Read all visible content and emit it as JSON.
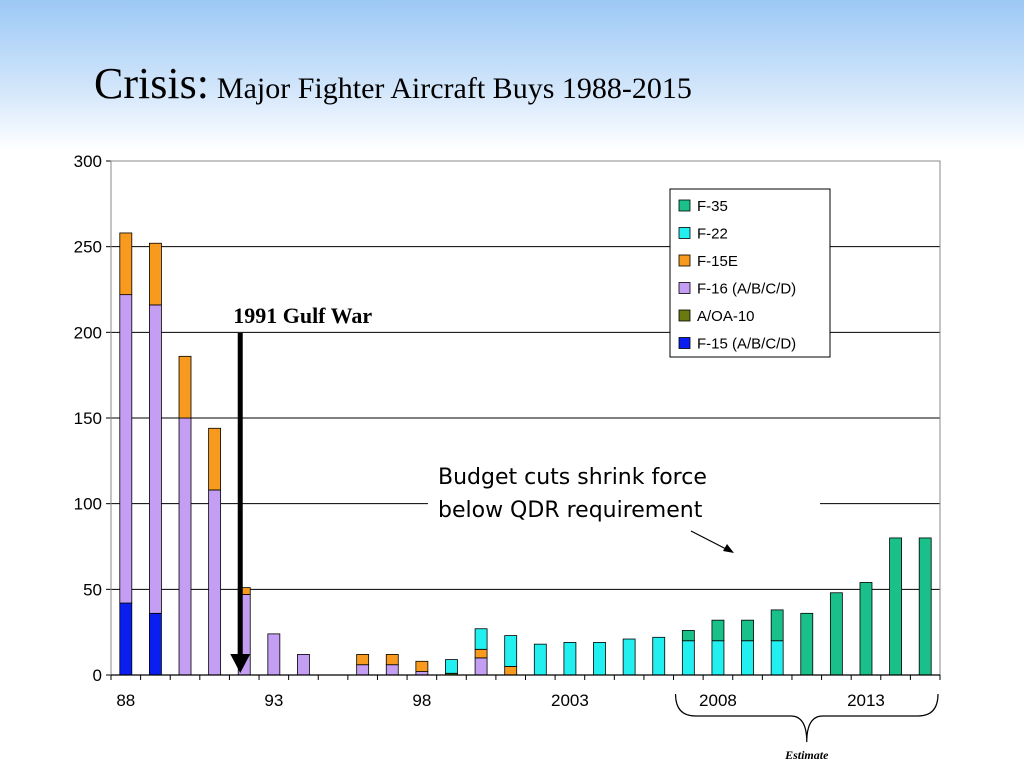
{
  "slide": {
    "title_main": "Crisis:",
    "title_sub": "Major Fighter Aircraft Buys 1988-2015"
  },
  "chart_data": {
    "type": "bar",
    "stacked": true,
    "categories": [
      1988,
      1989,
      1990,
      1991,
      1992,
      1993,
      1994,
      1995,
      1996,
      1997,
      1998,
      1999,
      2000,
      2001,
      2002,
      2003,
      2004,
      2005,
      2006,
      2007,
      2008,
      2009,
      2010,
      2011,
      2012,
      2013,
      2014,
      2015
    ],
    "x_tick_labels": [
      {
        "category": 1988,
        "label": "88"
      },
      {
        "category": 1993,
        "label": "93"
      },
      {
        "category": 1998,
        "label": "98"
      },
      {
        "category": 2003,
        "label": "2003"
      },
      {
        "category": 2008,
        "label": "2008"
      },
      {
        "category": 2013,
        "label": "2013"
      }
    ],
    "ylim": [
      0,
      300
    ],
    "yticks": [
      0,
      50,
      100,
      150,
      200,
      250,
      300
    ],
    "grid": true,
    "legend_position": "top-right",
    "series": [
      {
        "name": "F-15 (A/B/C/D)",
        "color": "#0a1ef0",
        "values": [
          42,
          36,
          0,
          0,
          0,
          0,
          0,
          0,
          0,
          0,
          0,
          0,
          0,
          0,
          0,
          0,
          0,
          0,
          0,
          0,
          0,
          0,
          0,
          0,
          0,
          0,
          0,
          0
        ]
      },
      {
        "name": "A/OA-10",
        "color": "#6b7a10",
        "values": [
          0,
          0,
          0,
          0,
          0,
          0,
          0,
          0,
          0,
          0,
          0,
          1,
          0,
          0,
          0,
          0,
          0,
          0,
          0,
          0,
          0,
          0,
          0,
          0,
          0,
          0,
          0,
          0
        ]
      },
      {
        "name": "F-16 (A/B/C/D)",
        "color": "#c39ef2",
        "values": [
          180,
          180,
          150,
          108,
          47,
          24,
          12,
          0,
          6,
          6,
          2,
          0,
          10,
          0,
          0,
          0,
          0,
          0,
          0,
          0,
          0,
          0,
          0,
          0,
          0,
          0,
          0,
          0
        ]
      },
      {
        "name": "F-15E",
        "color": "#f79a1e",
        "values": [
          36,
          36,
          36,
          36,
          4,
          0,
          0,
          0,
          6,
          6,
          6,
          0,
          5,
          5,
          0,
          0,
          0,
          0,
          0,
          0,
          0,
          0,
          0,
          0,
          0,
          0,
          0,
          0
        ]
      },
      {
        "name": "F-22",
        "color": "#22f0f0",
        "values": [
          0,
          0,
          0,
          0,
          0,
          0,
          0,
          0,
          0,
          0,
          0,
          8,
          12,
          18,
          18,
          19,
          19,
          21,
          22,
          20,
          20,
          20,
          20,
          0,
          0,
          0,
          0,
          0
        ]
      },
      {
        "name": "F-35",
        "color": "#1ac08a",
        "values": [
          0,
          0,
          0,
          0,
          0,
          0,
          0,
          0,
          0,
          0,
          0,
          0,
          0,
          0,
          0,
          0,
          0,
          0,
          0,
          6,
          12,
          12,
          18,
          36,
          48,
          54,
          80,
          80
        ]
      }
    ],
    "annotations": {
      "gulf_war": {
        "label": "1991 Gulf War",
        "category": 1992
      },
      "budget": {
        "line1": "Budget cuts shrink force",
        "line2": "below QDR requirement"
      },
      "estimate": {
        "label": "Estimate",
        "from": 2007,
        "to": 2015
      }
    }
  }
}
